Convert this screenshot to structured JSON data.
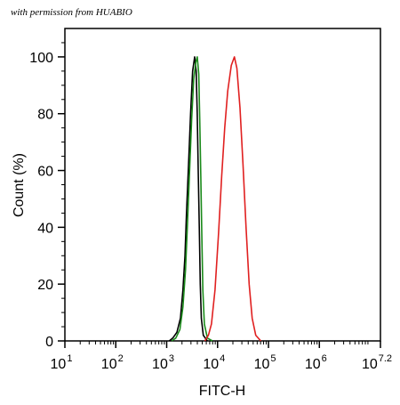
{
  "watermark": "with permission from HUABIO",
  "chart_data": {
    "type": "line",
    "xlabel": "FITC-H",
    "ylabel": "Count  (%)",
    "xscale": "log",
    "xlim": [
      1,
      7.2
    ],
    "ylim": [
      0,
      110
    ],
    "x_ticks": [
      {
        "base": "10",
        "exp": "1",
        "value": 1
      },
      {
        "base": "10",
        "exp": "2",
        "value": 2
      },
      {
        "base": "10",
        "exp": "3",
        "value": 3
      },
      {
        "base": "10",
        "exp": "4",
        "value": 4
      },
      {
        "base": "10",
        "exp": "5",
        "value": 5
      },
      {
        "base": "10",
        "exp": "6",
        "value": 6
      },
      {
        "base": "10",
        "exp": "7.2",
        "value": 7.2
      }
    ],
    "y_ticks": [
      0,
      20,
      40,
      60,
      80,
      100
    ],
    "grid": false,
    "series": [
      {
        "color": "#000000",
        "points": [
          [
            3.05,
            0
          ],
          [
            3.12,
            1
          ],
          [
            3.2,
            3
          ],
          [
            3.27,
            8
          ],
          [
            3.32,
            18
          ],
          [
            3.36,
            30
          ],
          [
            3.39,
            45
          ],
          [
            3.43,
            62
          ],
          [
            3.47,
            80
          ],
          [
            3.51,
            95
          ],
          [
            3.55,
            100
          ],
          [
            3.58,
            95
          ],
          [
            3.6,
            80
          ],
          [
            3.62,
            60
          ],
          [
            3.64,
            40
          ],
          [
            3.66,
            20
          ],
          [
            3.68,
            8
          ],
          [
            3.72,
            2
          ],
          [
            3.8,
            0
          ]
        ]
      },
      {
        "color": "#1a8a1a",
        "points": [
          [
            3.1,
            0
          ],
          [
            3.18,
            1
          ],
          [
            3.26,
            4
          ],
          [
            3.32,
            12
          ],
          [
            3.37,
            25
          ],
          [
            3.41,
            42
          ],
          [
            3.45,
            60
          ],
          [
            3.49,
            78
          ],
          [
            3.53,
            92
          ],
          [
            3.57,
            98
          ],
          [
            3.6,
            100
          ],
          [
            3.63,
            94
          ],
          [
            3.65,
            78
          ],
          [
            3.67,
            58
          ],
          [
            3.69,
            38
          ],
          [
            3.71,
            18
          ],
          [
            3.74,
            6
          ],
          [
            3.8,
            1
          ],
          [
            3.9,
            0
          ]
        ]
      },
      {
        "color": "#e02020",
        "points": [
          [
            3.75,
            0
          ],
          [
            3.82,
            2
          ],
          [
            3.88,
            6
          ],
          [
            3.95,
            18
          ],
          [
            4.02,
            38
          ],
          [
            4.08,
            58
          ],
          [
            4.14,
            75
          ],
          [
            4.2,
            88
          ],
          [
            4.27,
            97
          ],
          [
            4.33,
            100
          ],
          [
            4.38,
            96
          ],
          [
            4.44,
            82
          ],
          [
            4.5,
            62
          ],
          [
            4.56,
            40
          ],
          [
            4.62,
            20
          ],
          [
            4.68,
            8
          ],
          [
            4.75,
            2
          ],
          [
            4.85,
            0
          ]
        ]
      }
    ]
  }
}
